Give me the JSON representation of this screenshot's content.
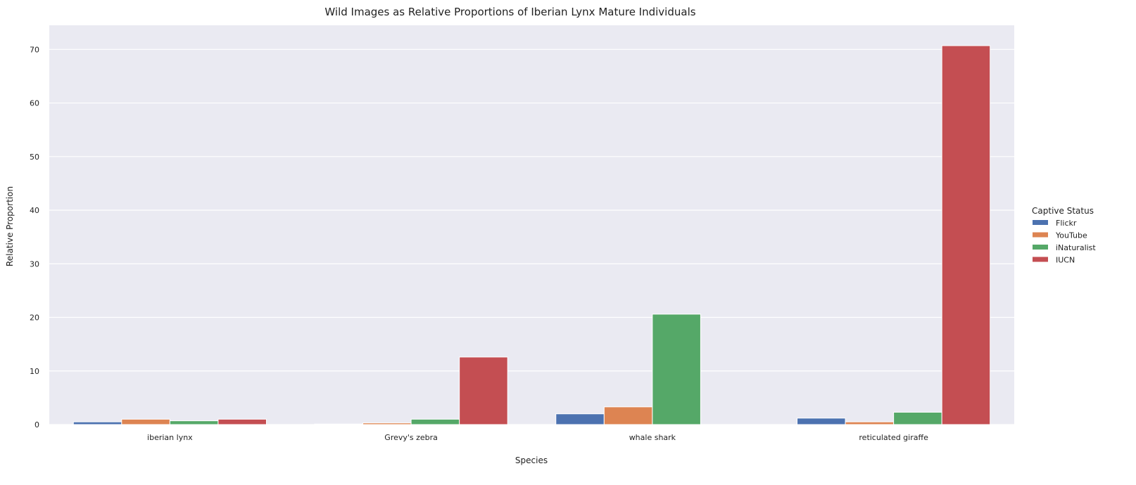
{
  "chart_data": {
    "type": "bar",
    "title": "Wild Images as Relative Proportions of Iberian Lynx Mature Individuals",
    "xlabel": "Species",
    "ylabel": "Relative Proportion",
    "categories": [
      "iberian lynx",
      "Grevy's zebra",
      "whale shark",
      "reticulated giraffe"
    ],
    "series": [
      {
        "name": "Flickr",
        "color": "#4c72b0",
        "values": [
          0.5,
          0.1,
          2.0,
          1.2
        ]
      },
      {
        "name": "YouTube",
        "color": "#dd8452",
        "values": [
          1.0,
          0.3,
          3.3,
          0.5
        ]
      },
      {
        "name": "iNaturalist",
        "color": "#55a868",
        "values": [
          0.7,
          1.0,
          20.6,
          2.3
        ]
      },
      {
        "name": "IUCN",
        "color": "#c44e52",
        "values": [
          1.0,
          12.6,
          0.0,
          70.7
        ]
      }
    ],
    "ylim": [
      0,
      74.5
    ],
    "yticks": [
      0,
      10,
      20,
      30,
      40,
      50,
      60,
      70
    ],
    "grid": true,
    "legend": {
      "title": "Captive Status",
      "placement": "right"
    },
    "background": "#eaeaf2"
  }
}
